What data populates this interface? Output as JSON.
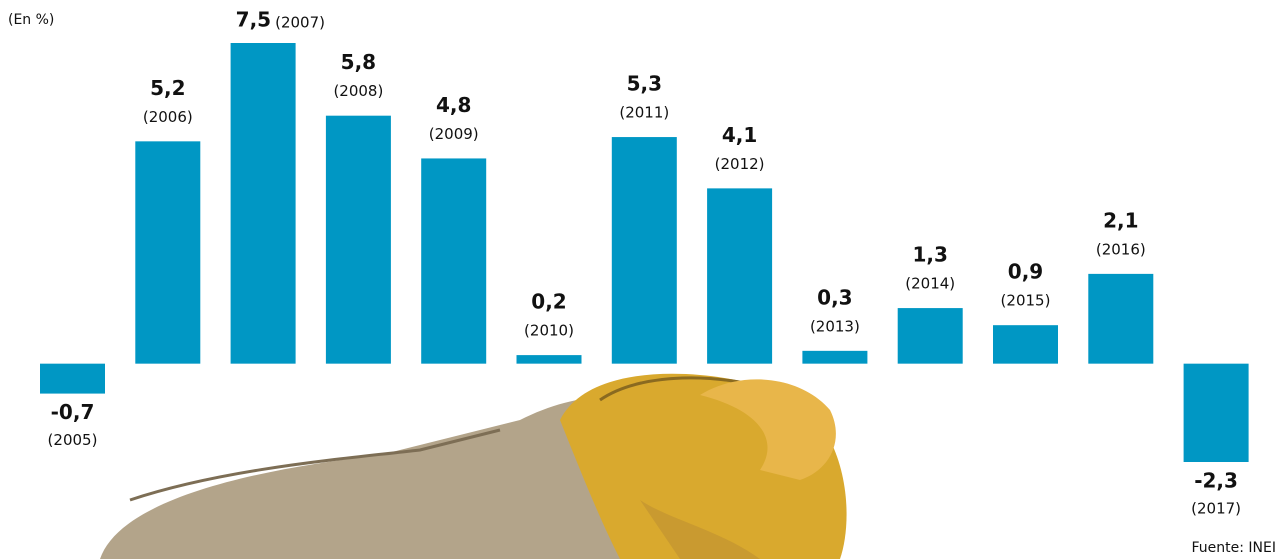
{
  "chart_data": {
    "type": "bar",
    "unit_label": "(En %)",
    "source": "Fuente: INEI",
    "categories": [
      "(2005)",
      "(2006)",
      "(2007)",
      "(2008)",
      "(2009)",
      "(2010)",
      "(2011)",
      "(2012)",
      "(2013)",
      "(2014)",
      "(2015)",
      "(2016)",
      "(2017)"
    ],
    "values": [
      -0.7,
      5.2,
      7.5,
      5.8,
      4.8,
      0.2,
      5.3,
      4.1,
      0.3,
      1.3,
      0.9,
      2.1,
      -2.3
    ],
    "value_labels": [
      "-0,7",
      "5,2",
      "7,5",
      "5,8",
      "4,8",
      "0,2",
      "5,3",
      "4,1",
      "0,3",
      "1,3",
      "0,9",
      "2,1",
      "-2,3"
    ],
    "color": "#0097c4"
  }
}
